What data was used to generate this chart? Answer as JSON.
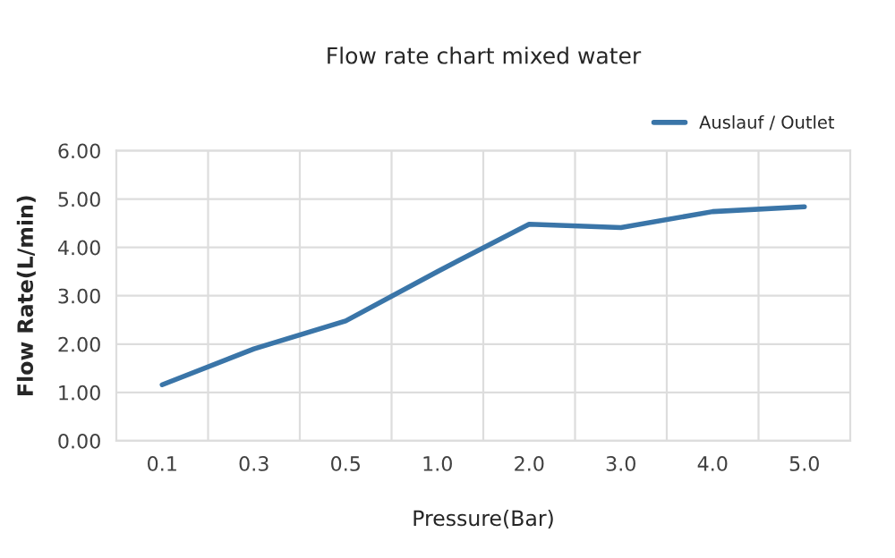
{
  "chart_data": {
    "type": "line",
    "title": "Flow rate chart mixed water",
    "xlabel": "Pressure(Bar)",
    "ylabel": "Flow Rate(L/min)",
    "categories": [
      "0.1",
      "0.3",
      "0.5",
      "1.0",
      "2.0",
      "3.0",
      "4.0",
      "5.0"
    ],
    "series": [
      {
        "name": "Auslauf / Outlet",
        "color": "#3a75a8",
        "values": [
          1.16,
          1.9,
          2.48,
          3.5,
          4.48,
          4.41,
          4.74,
          4.84
        ]
      }
    ],
    "ylim": [
      0,
      6
    ],
    "yticks": [
      {
        "value": 0,
        "label": "0.00"
      },
      {
        "value": 1,
        "label": "1.00"
      },
      {
        "value": 2,
        "label": "2.00"
      },
      {
        "value": 3,
        "label": "3.00"
      },
      {
        "value": 4,
        "label": "4.00"
      },
      {
        "value": 5,
        "label": "5.00"
      },
      {
        "value": 6,
        "label": "6.00"
      }
    ],
    "grid": true,
    "legend": "top right",
    "marker": "none",
    "line_style": "solid"
  }
}
